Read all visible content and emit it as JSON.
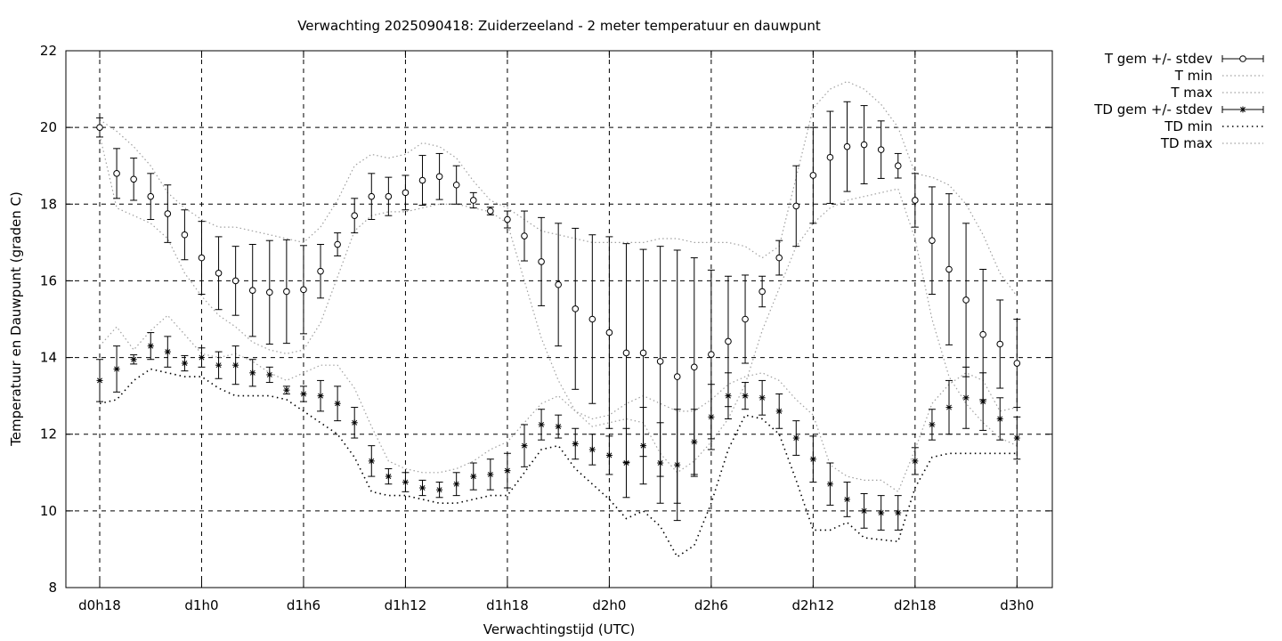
{
  "chart_data": {
    "type": "line",
    "title": "Verwachting 2025090418: Zuiderzeeland - 2 meter temperatuur en dauwpunt",
    "xlabel": "Verwachtingstijd (UTC)",
    "ylabel": "Temperatuur en Dauwpunt (graden C)",
    "x_unit": "hours",
    "xlim": [
      -1,
      57
    ],
    "ylim": [
      8,
      22
    ],
    "y_ticks": [
      "8",
      "10",
      "12",
      "14",
      "16",
      "18",
      "20",
      "22"
    ],
    "x_ticks": [
      {
        "x": 0,
        "label": "d0h18"
      },
      {
        "x": 6,
        "label": "d1h0"
      },
      {
        "x": 12,
        "label": "d1h6"
      },
      {
        "x": 18,
        "label": "d1h12"
      },
      {
        "x": 24,
        "label": "d1h18"
      },
      {
        "x": 30,
        "label": "d2h0"
      },
      {
        "x": 36,
        "label": "d2h6"
      },
      {
        "x": 42,
        "label": "d2h12"
      },
      {
        "x": 48,
        "label": "d2h18"
      },
      {
        "x": 54,
        "label": "d3h0"
      }
    ],
    "grid": true,
    "legend_position": "outside-top-right",
    "legend": [
      {
        "label": "T gem +/- stdev",
        "style": "errorbar-circle"
      },
      {
        "label": "T min",
        "style": "dotted-grey"
      },
      {
        "label": "T max",
        "style": "dotted-grey"
      },
      {
        "label": "TD gem +/- stdev",
        "style": "errorbar-star"
      },
      {
        "label": "TD min",
        "style": "dotted-black"
      },
      {
        "label": "TD max",
        "style": "dotted-grey"
      }
    ],
    "x": [
      0,
      1,
      2,
      3,
      4,
      5,
      6,
      7,
      8,
      9,
      10,
      11,
      12,
      13,
      14,
      15,
      16,
      17,
      18,
      19,
      20,
      21,
      22,
      23,
      24,
      25,
      26,
      27,
      28,
      29,
      30,
      31,
      32,
      33,
      34,
      35,
      36,
      37,
      38,
      39,
      40,
      41,
      42,
      43,
      44,
      45,
      46,
      47,
      48,
      49,
      50,
      51,
      52,
      53,
      54
    ],
    "series": [
      {
        "name": "T gem +/- stdev",
        "mean": [
          20.0,
          18.8,
          18.65,
          18.2,
          17.75,
          17.2,
          16.6,
          16.2,
          16.0,
          15.75,
          15.7,
          15.72,
          15.77,
          16.25,
          16.95,
          17.7,
          18.2,
          18.2,
          18.3,
          18.62,
          18.72,
          18.5,
          18.1,
          17.82,
          17.6,
          17.17,
          16.5,
          15.9,
          15.27,
          15.0,
          14.65,
          14.12,
          14.12,
          13.9,
          13.5,
          13.75,
          14.08,
          14.42,
          15.0,
          15.72,
          16.6,
          17.95,
          18.75,
          19.22,
          19.5,
          19.55,
          19.42,
          19.0,
          18.1,
          17.05,
          16.3,
          15.5,
          14.6,
          14.35,
          13.85
        ],
        "stdev": [
          0.25,
          0.65,
          0.55,
          0.6,
          0.75,
          0.65,
          0.95,
          0.95,
          0.9,
          1.2,
          1.35,
          1.35,
          1.15,
          0.7,
          0.3,
          0.45,
          0.6,
          0.5,
          0.45,
          0.65,
          0.6,
          0.5,
          0.2,
          0.1,
          0.22,
          0.65,
          1.15,
          1.6,
          2.1,
          2.2,
          2.5,
          2.85,
          2.7,
          3.0,
          3.3,
          2.85,
          2.2,
          1.7,
          1.15,
          0.4,
          0.45,
          1.05,
          1.25,
          1.2,
          1.17,
          1.02,
          0.75,
          0.32,
          0.7,
          1.4,
          1.97,
          2.0,
          1.7,
          1.15,
          1.15
        ]
      },
      {
        "name": "T min",
        "values": [
          19.8,
          17.9,
          17.7,
          17.5,
          17.1,
          16.2,
          15.6,
          15.1,
          14.8,
          14.4,
          14.2,
          14.1,
          14.2,
          14.9,
          16.1,
          17.3,
          17.7,
          17.8,
          17.8,
          17.9,
          18.0,
          18.0,
          17.9,
          17.8,
          17.5,
          16.0,
          14.5,
          13.4,
          12.6,
          12.2,
          12.3,
          12.4,
          12.3,
          11.5,
          11.0,
          11.3,
          11.8,
          12.4,
          13.3,
          14.7,
          15.8,
          16.9,
          17.5,
          17.9,
          18.1,
          18.2,
          18.3,
          18.4,
          17.1,
          15.0,
          13.5,
          12.8,
          12.3,
          11.9,
          11.7
        ]
      },
      {
        "name": "T max",
        "values": [
          20.2,
          19.9,
          19.5,
          19.0,
          18.3,
          17.9,
          17.6,
          17.4,
          17.4,
          17.3,
          17.2,
          17.1,
          17.0,
          17.4,
          18.1,
          19.0,
          19.3,
          19.2,
          19.3,
          19.6,
          19.5,
          19.2,
          18.6,
          18.1,
          17.9,
          17.6,
          17.3,
          17.2,
          17.1,
          17.0,
          17.0,
          17.0,
          17.0,
          17.1,
          17.1,
          17.0,
          17.0,
          17.0,
          16.9,
          16.6,
          16.9,
          18.7,
          20.5,
          21.0,
          21.2,
          21.0,
          20.6,
          20.0,
          18.8,
          18.7,
          18.5,
          18.0,
          17.2,
          16.2,
          15.6
        ]
      },
      {
        "name": "TD gem +/- stdev",
        "mean": [
          13.4,
          13.7,
          13.95,
          14.3,
          14.15,
          13.85,
          14.0,
          13.8,
          13.8,
          13.6,
          13.55,
          13.15,
          13.05,
          13.0,
          12.8,
          12.3,
          11.3,
          10.9,
          10.75,
          10.6,
          10.55,
          10.7,
          10.9,
          10.95,
          11.05,
          11.7,
          12.25,
          12.2,
          11.75,
          11.6,
          11.45,
          11.25,
          11.7,
          11.25,
          11.2,
          11.8,
          12.45,
          13.0,
          13.0,
          12.95,
          12.6,
          11.9,
          11.35,
          10.7,
          10.3,
          10.0,
          9.95,
          9.95,
          11.3,
          12.25,
          12.7,
          12.95,
          12.85,
          12.4,
          11.9
        ],
        "stdev": [
          0.55,
          0.6,
          0.12,
          0.35,
          0.4,
          0.2,
          0.25,
          0.35,
          0.5,
          0.35,
          0.2,
          0.1,
          0.2,
          0.4,
          0.45,
          0.4,
          0.4,
          0.2,
          0.25,
          0.2,
          0.2,
          0.3,
          0.35,
          0.4,
          0.45,
          0.55,
          0.4,
          0.3,
          0.4,
          0.4,
          0.5,
          0.9,
          1.0,
          1.05,
          1.45,
          0.85,
          0.85,
          0.6,
          0.35,
          0.45,
          0.45,
          0.45,
          0.6,
          0.55,
          0.45,
          0.45,
          0.45,
          0.45,
          0.35,
          0.4,
          0.7,
          0.8,
          0.75,
          0.55,
          0.55
        ]
      },
      {
        "name": "TD min",
        "values": [
          12.8,
          12.9,
          13.4,
          13.7,
          13.6,
          13.5,
          13.5,
          13.2,
          13.0,
          13.0,
          13.0,
          12.9,
          12.6,
          12.3,
          12.0,
          11.4,
          10.5,
          10.4,
          10.4,
          10.3,
          10.2,
          10.2,
          10.3,
          10.4,
          10.4,
          11.0,
          11.6,
          11.7,
          11.1,
          10.7,
          10.3,
          9.8,
          10.0,
          9.6,
          8.8,
          9.1,
          10.2,
          11.6,
          12.5,
          12.4,
          12.0,
          10.8,
          9.5,
          9.5,
          9.7,
          9.3,
          9.25,
          9.2,
          10.6,
          11.4,
          11.5,
          11.5,
          11.5,
          11.5,
          11.5
        ]
      },
      {
        "name": "TD max",
        "values": [
          14.3,
          14.8,
          14.2,
          14.7,
          15.1,
          14.6,
          14.1,
          14.0,
          14.1,
          13.9,
          13.6,
          13.4,
          13.6,
          13.8,
          13.8,
          13.2,
          12.2,
          11.3,
          11.1,
          11.0,
          11.0,
          11.1,
          11.3,
          11.6,
          11.8,
          12.3,
          12.8,
          13.0,
          12.6,
          12.4,
          12.5,
          12.8,
          13.0,
          12.8,
          12.6,
          12.6,
          12.9,
          13.3,
          13.5,
          13.6,
          13.4,
          12.9,
          12.5,
          11.2,
          10.9,
          10.8,
          10.8,
          10.5,
          11.6,
          12.8,
          13.3,
          13.6,
          13.4,
          12.6,
          12.7
        ]
      }
    ]
  }
}
